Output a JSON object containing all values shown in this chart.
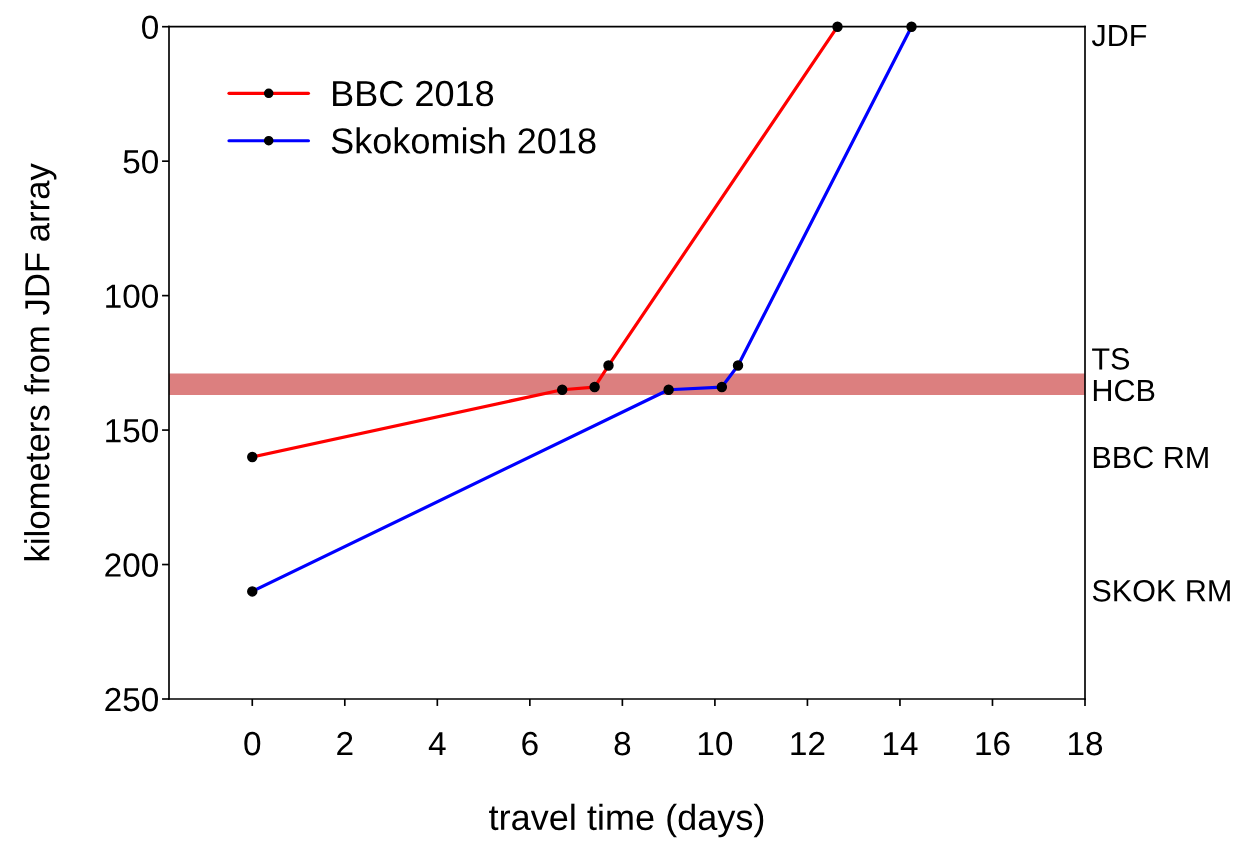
{
  "chart_data": {
    "type": "line",
    "xlabel": "travel time (days)",
    "ylabel": "kilometers from JDF array",
    "series": [
      {
        "name": "BBC 2018",
        "color": "#ff0000",
        "x": [
          0,
          6.7,
          7.4,
          7.7,
          12.65
        ],
        "values": [
          160,
          135,
          134,
          126,
          0
        ]
      },
      {
        "name": "Skokomish 2018",
        "color": "#0000ff",
        "x": [
          0,
          9.0,
          10.15,
          10.5,
          14.25
        ],
        "values": [
          210,
          135,
          134,
          126,
          0
        ]
      }
    ],
    "xlim": [
      -1.8,
      18
    ],
    "xticks": [
      0,
      2,
      4,
      6,
      8,
      10,
      12,
      14,
      16,
      18
    ],
    "ylim": [
      250,
      0
    ],
    "yticks": [
      0,
      50,
      100,
      150,
      200,
      250
    ],
    "annotations": [
      "JDF",
      "TS",
      "HCB",
      "BBC RM",
      "SKOK RM"
    ],
    "bands": [
      {
        "axis": "y",
        "from": 129,
        "to": 137,
        "color": "#dc7f7f"
      }
    ],
    "marker": "circle",
    "line_style": "solid",
    "legend": "top left",
    "grid": false
  }
}
